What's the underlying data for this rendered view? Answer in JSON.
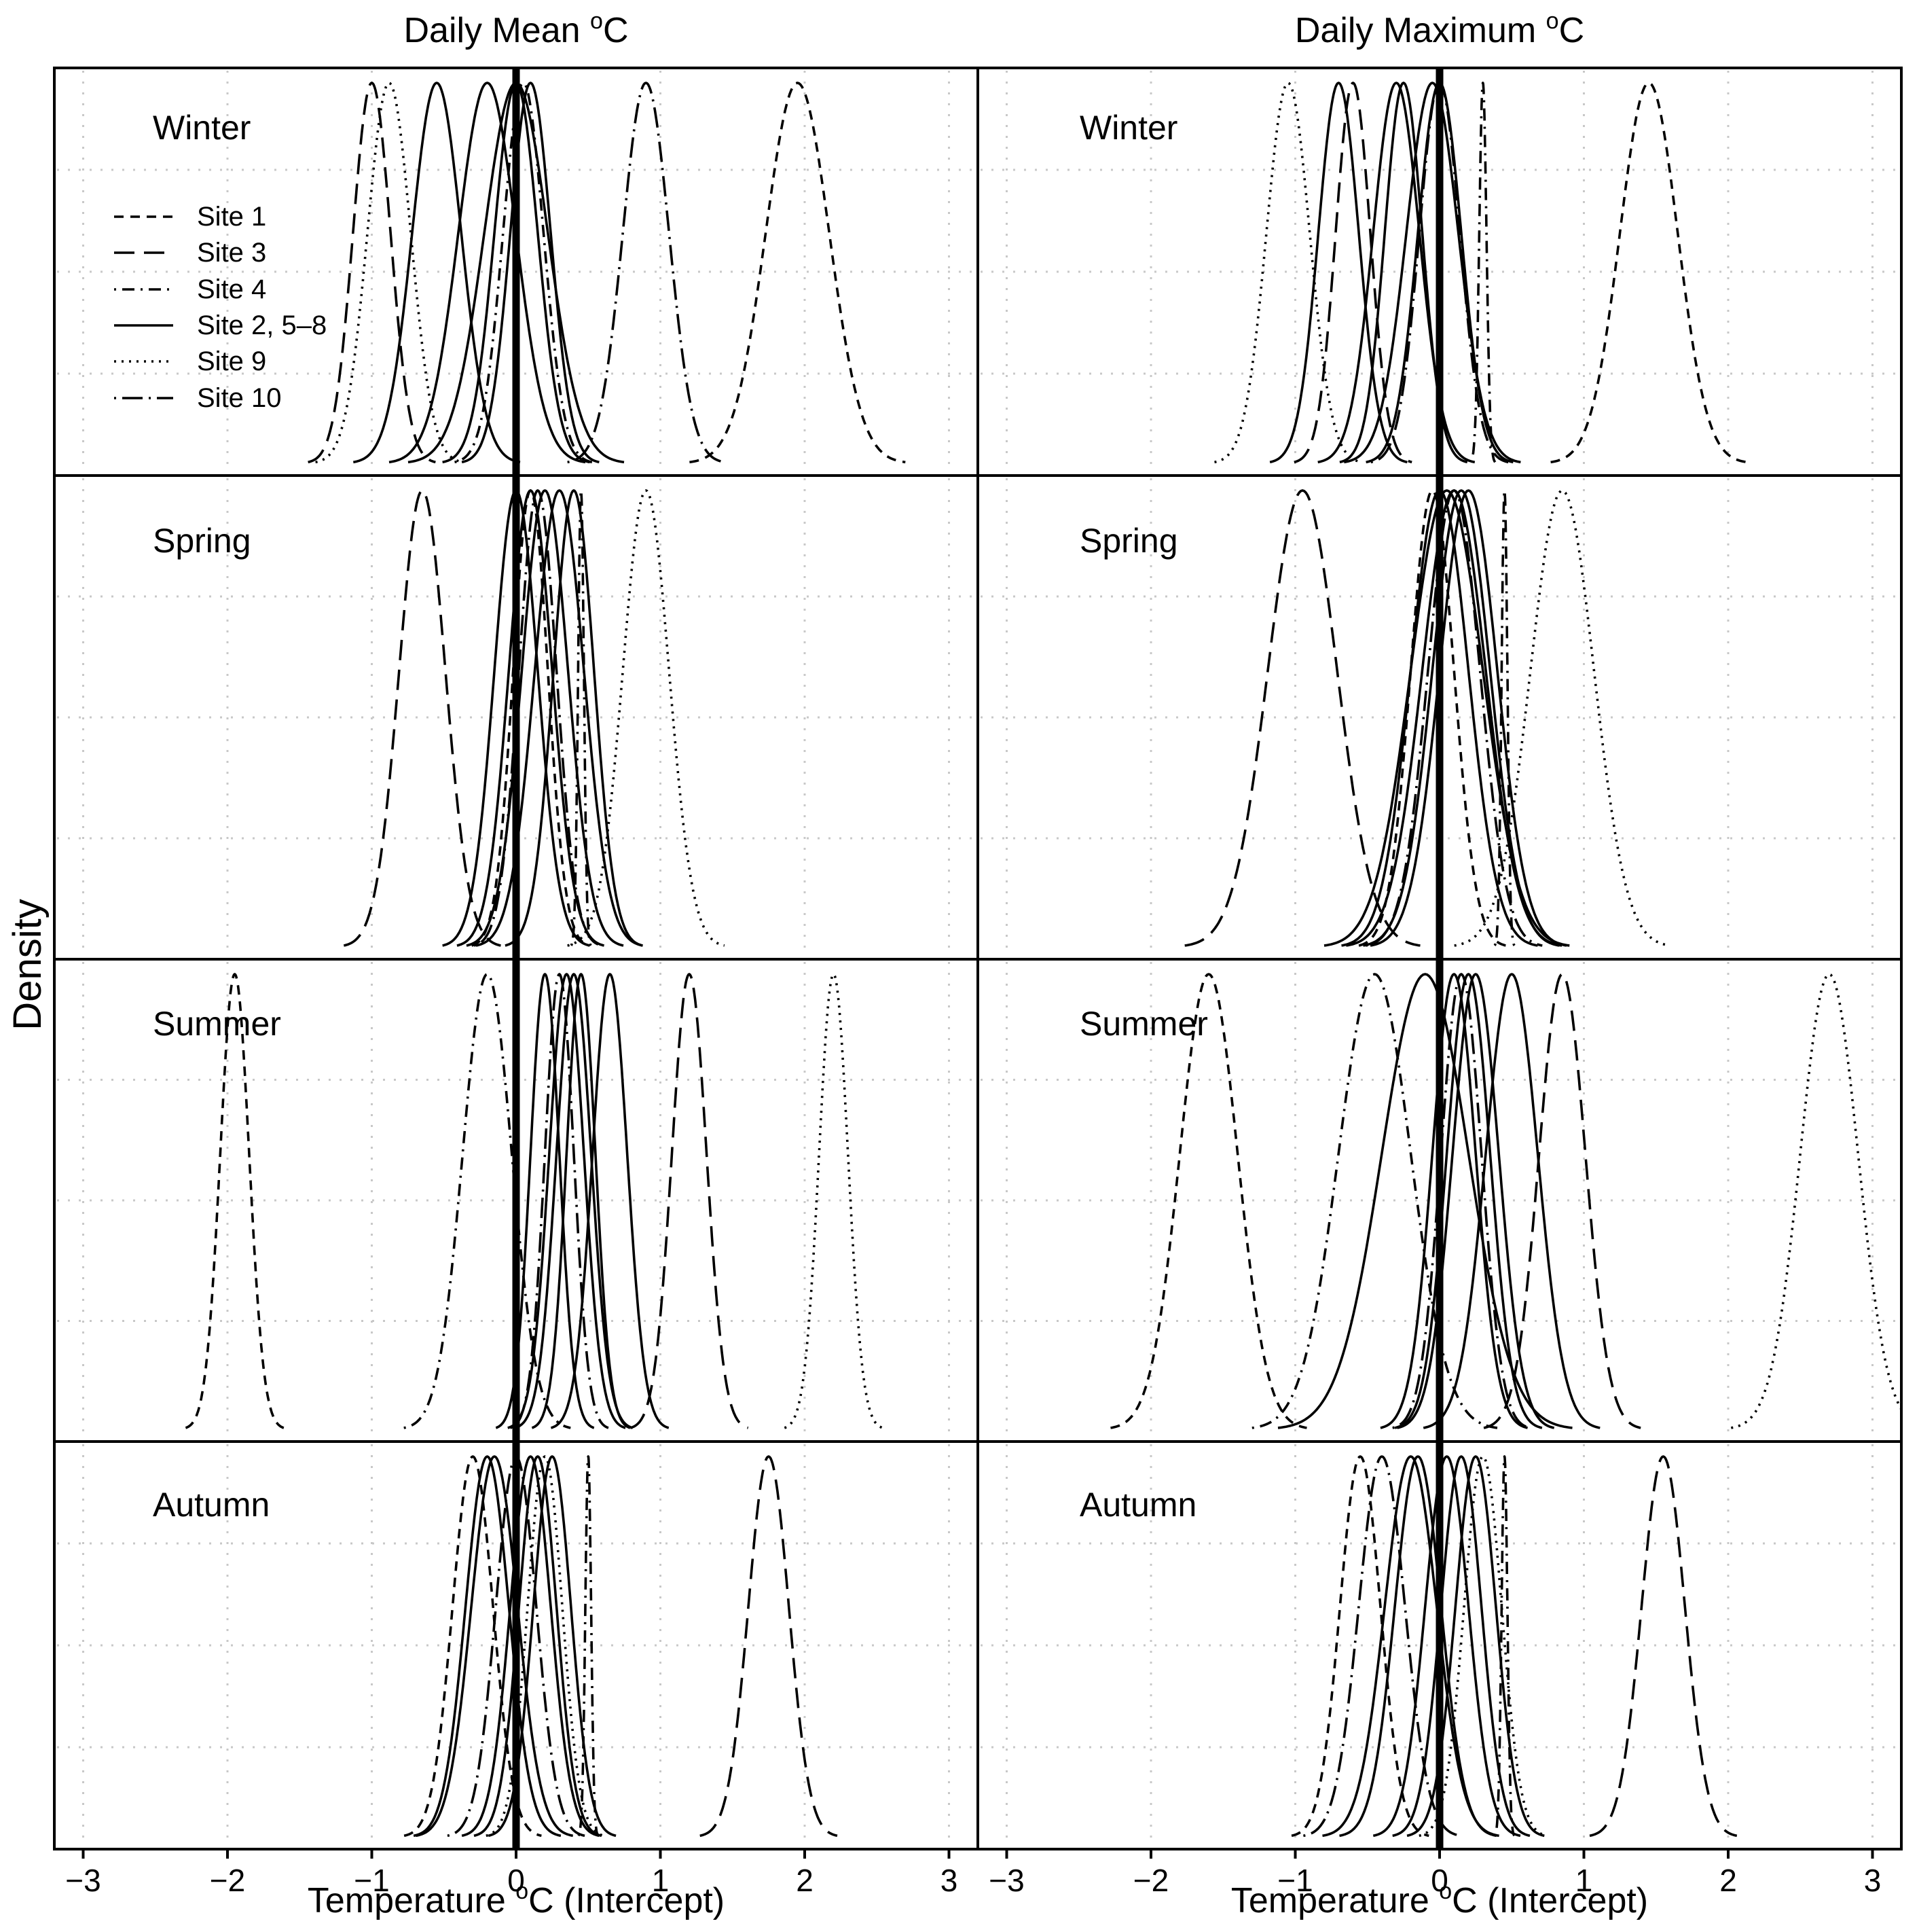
{
  "chart_data": {
    "type": "density",
    "ylabel": "Density",
    "xlim": [
      -3.2,
      3.2
    ],
    "xticks": [
      -3,
      -2,
      -1,
      0,
      1,
      2,
      3
    ],
    "tick_labels": [
      "−3",
      "−2",
      "−1",
      "0",
      "1",
      "2",
      "3"
    ],
    "grid": true,
    "reference_line_x": 0,
    "columns": [
      {
        "id": "mean",
        "title": "Daily Mean ",
        "title_sup": "o",
        "title_tail": "C",
        "xlabel": "Temperature ",
        "xlabel_sup": "o",
        "xlabel_tail": "C (Intercept)"
      },
      {
        "id": "max",
        "title": "Daily Maximum ",
        "title_sup": "o",
        "title_tail": "C",
        "xlabel": "Temperature ",
        "xlabel_sup": "o",
        "xlabel_tail": "C (Intercept)"
      }
    ],
    "seasons": [
      "Winter",
      "Spring",
      "Summer",
      "Autumn"
    ],
    "legend": [
      {
        "label": "Site 1",
        "style": "short-dash"
      },
      {
        "label": "Site 3",
        "style": "long-dash"
      },
      {
        "label": "Site 4",
        "style": "dot-dash"
      },
      {
        "label": "Site 2, 5–8",
        "style": "solid"
      },
      {
        "label": "Site 9",
        "style": "dotted"
      },
      {
        "label": "Site 10",
        "style": "long-dot-dash"
      }
    ],
    "panels": [
      {
        "column": "mean",
        "season": "Winter",
        "curves": [
          {
            "style": "short-dash",
            "mean": 1.95,
            "sd": 0.22
          },
          {
            "style": "long-dash",
            "mean": -1.0,
            "sd": 0.13
          },
          {
            "style": "dot-dash",
            "mean": 0.05,
            "sd": 0.14
          },
          {
            "style": "solid",
            "mean": -0.55,
            "sd": 0.17
          },
          {
            "style": "solid",
            "mean": -0.2,
            "sd": 0.2
          },
          {
            "style": "solid",
            "mean": 0.0,
            "sd": 0.15
          },
          {
            "style": "solid",
            "mean": 0.1,
            "sd": 0.14
          },
          {
            "style": "solid",
            "mean": 0.0,
            "sd": 0.22
          },
          {
            "style": "dotted",
            "mean": -0.88,
            "sd": 0.15
          },
          {
            "style": "long-dot-dash",
            "mean": 0.9,
            "sd": 0.16
          }
        ]
      },
      {
        "column": "max",
        "season": "Winter",
        "curves": [
          {
            "style": "short-dash",
            "mean": 1.45,
            "sd": 0.2
          },
          {
            "style": "long-dash",
            "mean": -0.6,
            "sd": 0.12
          },
          {
            "style": "dot-dash",
            "mean": 0.3,
            "sd": 0.025
          },
          {
            "style": "solid",
            "mean": -0.7,
            "sd": 0.14
          },
          {
            "style": "solid",
            "mean": -0.3,
            "sd": 0.16
          },
          {
            "style": "solid",
            "mean": -0.25,
            "sd": 0.13
          },
          {
            "style": "solid",
            "mean": 0.0,
            "sd": 0.15
          },
          {
            "style": "solid",
            "mean": -0.05,
            "sd": 0.18
          },
          {
            "style": "dotted",
            "mean": -1.05,
            "sd": 0.15
          },
          {
            "style": "long-dot-dash",
            "mean": 0.0,
            "sd": 0.14
          }
        ]
      },
      {
        "column": "mean",
        "season": "Spring",
        "curves": [
          {
            "style": "short-dash",
            "mean": 0.1,
            "sd": 0.12
          },
          {
            "style": "long-dash",
            "mean": -0.65,
            "sd": 0.16
          },
          {
            "style": "dot-dash",
            "mean": 0.45,
            "sd": 0.02
          },
          {
            "style": "solid",
            "mean": 0.0,
            "sd": 0.15
          },
          {
            "style": "solid",
            "mean": 0.1,
            "sd": 0.15
          },
          {
            "style": "solid",
            "mean": 0.2,
            "sd": 0.16
          },
          {
            "style": "solid",
            "mean": 0.3,
            "sd": 0.17
          },
          {
            "style": "solid",
            "mean": 0.4,
            "sd": 0.14
          },
          {
            "style": "dotted",
            "mean": 0.9,
            "sd": 0.16
          },
          {
            "style": "long-dot-dash",
            "mean": 0.15,
            "sd": 0.13
          }
        ]
      },
      {
        "column": "max",
        "season": "Spring",
        "curves": [
          {
            "style": "short-dash",
            "mean": -0.05,
            "sd": 0.15
          },
          {
            "style": "long-dash",
            "mean": -0.95,
            "sd": 0.24
          },
          {
            "style": "dot-dash",
            "mean": 0.45,
            "sd": 0.02
          },
          {
            "style": "solid",
            "mean": 0.0,
            "sd": 0.2
          },
          {
            "style": "solid",
            "mean": 0.1,
            "sd": 0.22
          },
          {
            "style": "solid",
            "mean": 0.15,
            "sd": 0.2
          },
          {
            "style": "solid",
            "mean": 0.2,
            "sd": 0.2
          },
          {
            "style": "solid",
            "mean": 0.05,
            "sd": 0.25
          },
          {
            "style": "dotted",
            "mean": 0.85,
            "sd": 0.22
          },
          {
            "style": "long-dot-dash",
            "mean": 0.1,
            "sd": 0.18
          }
        ]
      },
      {
        "column": "mean",
        "season": "Summer",
        "curves": [
          {
            "style": "short-dash",
            "mean": -1.95,
            "sd": 0.1
          },
          {
            "style": "long-dash",
            "mean": 1.2,
            "sd": 0.12
          },
          {
            "style": "dot-dash",
            "mean": -0.2,
            "sd": 0.17
          },
          {
            "style": "solid",
            "mean": 0.2,
            "sd": 0.1
          },
          {
            "style": "solid",
            "mean": 0.35,
            "sd": 0.12
          },
          {
            "style": "solid",
            "mean": 0.4,
            "sd": 0.12
          },
          {
            "style": "solid",
            "mean": 0.45,
            "sd": 0.1
          },
          {
            "style": "solid",
            "mean": 0.65,
            "sd": 0.12
          },
          {
            "style": "dotted",
            "mean": 2.2,
            "sd": 0.1
          },
          {
            "style": "long-dot-dash",
            "mean": 0.3,
            "sd": 0.1
          }
        ]
      },
      {
        "column": "max",
        "season": "Summer",
        "curves": [
          {
            "style": "short-dash",
            "mean": -1.6,
            "sd": 0.2
          },
          {
            "style": "long-dash",
            "mean": 0.85,
            "sd": 0.16
          },
          {
            "style": "dot-dash",
            "mean": -0.45,
            "sd": 0.25
          },
          {
            "style": "solid",
            "mean": -0.1,
            "sd": 0.3
          },
          {
            "style": "solid",
            "mean": 0.1,
            "sd": 0.15
          },
          {
            "style": "solid",
            "mean": 0.2,
            "sd": 0.15
          },
          {
            "style": "solid",
            "mean": 0.25,
            "sd": 0.16
          },
          {
            "style": "solid",
            "mean": 0.5,
            "sd": 0.18
          },
          {
            "style": "dotted",
            "mean": 2.7,
            "sd": 0.2
          },
          {
            "style": "long-dot-dash",
            "mean": 0.15,
            "sd": 0.14
          }
        ]
      },
      {
        "column": "mean",
        "season": "Autumn",
        "curves": [
          {
            "style": "short-dash",
            "mean": -0.3,
            "sd": 0.14
          },
          {
            "style": "long-dash",
            "mean": 1.75,
            "sd": 0.14
          },
          {
            "style": "dot-dash",
            "mean": 0.5,
            "sd": 0.02
          },
          {
            "style": "solid",
            "mean": -0.2,
            "sd": 0.15
          },
          {
            "style": "solid",
            "mean": -0.15,
            "sd": 0.16
          },
          {
            "style": "solid",
            "mean": 0.1,
            "sd": 0.14
          },
          {
            "style": "solid",
            "mean": 0.15,
            "sd": 0.13
          },
          {
            "style": "solid",
            "mean": 0.25,
            "sd": 0.13
          },
          {
            "style": "dotted",
            "mean": 0.2,
            "sd": 0.12
          },
          {
            "style": "long-dot-dash",
            "mean": 0.0,
            "sd": 0.14
          }
        ]
      },
      {
        "column": "max",
        "season": "Autumn",
        "curves": [
          {
            "style": "short-dash",
            "mean": -0.55,
            "sd": 0.14
          },
          {
            "style": "long-dash",
            "mean": 1.55,
            "sd": 0.15
          },
          {
            "style": "dot-dash",
            "mean": 0.45,
            "sd": 0.02
          },
          {
            "style": "solid",
            "mean": -0.2,
            "sd": 0.18
          },
          {
            "style": "solid",
            "mean": -0.15,
            "sd": 0.16
          },
          {
            "style": "solid",
            "mean": 0.05,
            "sd": 0.15
          },
          {
            "style": "solid",
            "mean": 0.15,
            "sd": 0.14
          },
          {
            "style": "solid",
            "mean": 0.25,
            "sd": 0.14
          },
          {
            "style": "dotted",
            "mean": 0.3,
            "sd": 0.13
          },
          {
            "style": "long-dot-dash",
            "mean": -0.4,
            "sd": 0.16
          }
        ]
      }
    ]
  }
}
